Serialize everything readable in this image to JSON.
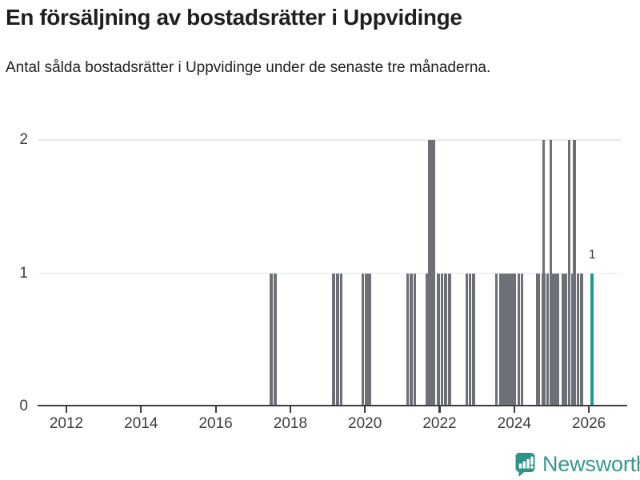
{
  "title": "En försäljning av bostadsrätter i Uppvidinge",
  "subtitle": "Antal sålda bostadsrätter i Uppvidinge under de senaste tre månaderna.",
  "branding": {
    "logo_text": "Newsworthy",
    "logo_icon": "bar-chart-speech-bubble-icon"
  },
  "colors": {
    "text": "#1f1f1f",
    "axis": "#3d3d3d",
    "gridline": "#e9e9e9",
    "bar": "#6d7076",
    "highlight": "#189c9c",
    "logo": "#38988b",
    "logo_icon": "#2f9488"
  },
  "chart_data": {
    "type": "bar",
    "title": "En försäljning av bostadsrätter i Uppvidinge",
    "subtitle": "Antal sålda bostadsrätter i Uppvidinge under de senaste tre månaderna.",
    "xlabel": "",
    "ylabel": "",
    "grid": "horizontal",
    "legend": "none",
    "x_ticks": [
      2012,
      2014,
      2016,
      2018,
      2020,
      2022,
      2024,
      2026
    ],
    "y_ticks": [
      0,
      1,
      2
    ],
    "ylim": [
      0,
      2
    ],
    "xlim": [
      2011.22,
      2027.05
    ],
    "bar_width_unit": "years",
    "points": [
      {
        "x": 2017.445,
        "w": 0.09,
        "v": 1
      },
      {
        "x": 2017.556,
        "w": 0.09,
        "v": 1
      },
      {
        "x": 2019.117,
        "w": 0.084,
        "v": 1
      },
      {
        "x": 2019.222,
        "w": 0.081,
        "v": 1
      },
      {
        "x": 2019.323,
        "w": 0.077,
        "v": 1
      },
      {
        "x": 2019.914,
        "w": 0.064,
        "v": 1
      },
      {
        "x": 2020.0,
        "w": 0.174,
        "v": 1
      },
      {
        "x": 2021.104,
        "w": 0.073,
        "v": 1
      },
      {
        "x": 2021.2,
        "w": 0.075,
        "v": 1
      },
      {
        "x": 2021.295,
        "w": 0.075,
        "v": 1
      },
      {
        "x": 2021.62,
        "w": 0.073,
        "v": 1
      },
      {
        "x": 2021.695,
        "w": 0.178,
        "v": 2
      },
      {
        "x": 2021.933,
        "w": 0.079,
        "v": 1
      },
      {
        "x": 2022.032,
        "w": 0.075,
        "v": 1
      },
      {
        "x": 2022.126,
        "w": 0.077,
        "v": 1
      },
      {
        "x": 2022.225,
        "w": 0.094,
        "v": 1
      },
      {
        "x": 2022.696,
        "w": 0.071,
        "v": 1
      },
      {
        "x": 2022.786,
        "w": 0.069,
        "v": 1
      },
      {
        "x": 2022.874,
        "w": 0.071,
        "v": 1
      },
      {
        "x": 2023.496,
        "w": 0.064,
        "v": 1
      },
      {
        "x": 2023.596,
        "w": 0.457,
        "v": 1
      },
      {
        "x": 2024.081,
        "w": 0.069,
        "v": 1
      },
      {
        "x": 2024.173,
        "w": 0.069,
        "v": 1
      },
      {
        "x": 2024.582,
        "w": 0.114,
        "v": 1
      },
      {
        "x": 2024.726,
        "w": 0.114,
        "v": 1
      },
      {
        "x": 2024.76,
        "w": 0.064,
        "v": 2
      },
      {
        "x": 2024.867,
        "w": 0.058,
        "v": 1
      },
      {
        "x": 2024.953,
        "w": 0.251,
        "v": 1
      },
      {
        "x": 2024.953,
        "w": 0.064,
        "v": 2
      },
      {
        "x": 2025.268,
        "w": 0.144,
        "v": 1
      },
      {
        "x": 2025.433,
        "w": 0.064,
        "v": 2
      },
      {
        "x": 2025.525,
        "w": 0.036,
        "v": 1
      },
      {
        "x": 2025.575,
        "w": 0.073,
        "v": 2
      },
      {
        "x": 2025.669,
        "w": 0.064,
        "v": 1
      },
      {
        "x": 2025.761,
        "w": 0.086,
        "v": 1
      },
      {
        "x": 2026.046,
        "w": 0.086,
        "v": 1,
        "highlight": true,
        "label": "1"
      }
    ]
  }
}
